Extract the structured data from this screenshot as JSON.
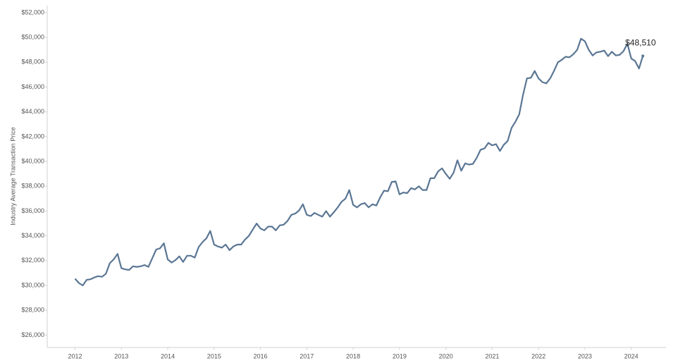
{
  "chart_data": {
    "type": "line",
    "y_label": "Industry Average Transaction Price",
    "last_value_label": "$48,510",
    "x": [
      2012,
      2012.083,
      2012.167,
      2012.25,
      2012.333,
      2012.417,
      2012.5,
      2012.583,
      2012.667,
      2012.75,
      2012.833,
      2012.917,
      2013,
      2013.083,
      2013.167,
      2013.25,
      2013.333,
      2013.417,
      2013.5,
      2013.583,
      2013.667,
      2013.75,
      2013.833,
      2013.917,
      2014,
      2014.083,
      2014.167,
      2014.25,
      2014.333,
      2014.417,
      2014.5,
      2014.583,
      2014.667,
      2014.75,
      2014.833,
      2014.917,
      2015,
      2015.083,
      2015.167,
      2015.25,
      2015.333,
      2015.417,
      2015.5,
      2015.583,
      2015.667,
      2015.75,
      2015.833,
      2015.917,
      2016,
      2016.083,
      2016.167,
      2016.25,
      2016.333,
      2016.417,
      2016.5,
      2016.583,
      2016.667,
      2016.75,
      2016.833,
      2016.917,
      2017,
      2017.083,
      2017.167,
      2017.25,
      2017.333,
      2017.417,
      2017.5,
      2017.583,
      2017.667,
      2017.75,
      2017.833,
      2017.917,
      2018,
      2018.083,
      2018.167,
      2018.25,
      2018.333,
      2018.417,
      2018.5,
      2018.583,
      2018.667,
      2018.75,
      2018.833,
      2018.917,
      2019,
      2019.083,
      2019.167,
      2019.25,
      2019.333,
      2019.417,
      2019.5,
      2019.583,
      2019.667,
      2019.75,
      2019.833,
      2019.917,
      2020,
      2020.083,
      2020.167,
      2020.25,
      2020.333,
      2020.417,
      2020.5,
      2020.583,
      2020.667,
      2020.75,
      2020.833,
      2020.917,
      2021,
      2021.083,
      2021.167,
      2021.25,
      2021.333,
      2021.417,
      2021.5,
      2021.583,
      2021.667,
      2021.75,
      2021.833,
      2021.917,
      2022,
      2022.083,
      2022.167,
      2022.25,
      2022.333,
      2022.417,
      2022.5,
      2022.583,
      2022.667,
      2022.75,
      2022.833,
      2022.917,
      2023,
      2023.083,
      2023.167,
      2023.25,
      2023.333,
      2023.417,
      2023.5,
      2023.583,
      2023.667,
      2023.75,
      2023.833,
      2023.917,
      2024,
      2024.083,
      2024.167,
      2024.25
    ],
    "values": [
      30550,
      30200,
      30000,
      30450,
      30500,
      30650,
      30750,
      30700,
      30950,
      31800,
      32100,
      32550,
      31400,
      31300,
      31250,
      31550,
      31500,
      31550,
      31650,
      31500,
      32200,
      32900,
      33000,
      33400,
      32100,
      31850,
      32050,
      32350,
      31900,
      32400,
      32400,
      32250,
      33100,
      33500,
      33800,
      34400,
      33300,
      33150,
      33050,
      33300,
      32850,
      33150,
      33300,
      33300,
      33700,
      34000,
      34500,
      35000,
      34600,
      34450,
      34750,
      34750,
      34450,
      34850,
      34900,
      35200,
      35700,
      35800,
      36050,
      36550,
      35700,
      35600,
      35850,
      35700,
      35550,
      36000,
      35550,
      35900,
      36300,
      36750,
      37000,
      37700,
      36500,
      36300,
      36550,
      36650,
      36300,
      36550,
      36450,
      37100,
      37650,
      37600,
      38350,
      38400,
      37350,
      37500,
      37450,
      37850,
      37750,
      38000,
      37700,
      37700,
      38650,
      38650,
      39200,
      39450,
      39000,
      38600,
      39100,
      40100,
      39250,
      39850,
      39750,
      39800,
      40300,
      40950,
      41050,
      41500,
      41300,
      41400,
      40850,
      41350,
      41650,
      42700,
      43200,
      43800,
      45400,
      46700,
      46750,
      47300,
      46700,
      46400,
      46300,
      46700,
      47300,
      48000,
      48200,
      48450,
      48400,
      48650,
      49000,
      49900,
      49700,
      49000,
      48550,
      48800,
      48850,
      48950,
      48500,
      48850,
      48550,
      48600,
      48900,
      49500,
      48300,
      48100,
      47500,
      48510
    ],
    "color": "#5a7694",
    "xlim": [
      2011.4,
      2024.75
    ],
    "xticks": [
      2012,
      2013,
      2014,
      2015,
      2016,
      2017,
      2018,
      2019,
      2020,
      2021,
      2022,
      2023,
      2024
    ],
    "ylim": [
      25000,
      52000
    ],
    "yticks": [
      {
        "value": 26000,
        "label": "$26,000"
      },
      {
        "value": 28000,
        "label": "$28,000"
      },
      {
        "value": 30000,
        "label": "$30,000"
      },
      {
        "value": 32000,
        "label": "$32,000"
      },
      {
        "value": 34000,
        "label": "$34,000"
      },
      {
        "value": 36000,
        "label": "$36,000"
      },
      {
        "value": 38000,
        "label": "$38,000"
      },
      {
        "value": 40000,
        "label": "$40,000"
      },
      {
        "value": 42000,
        "label": "$42,000"
      },
      {
        "value": 44000,
        "label": "$44,000"
      },
      {
        "value": 46000,
        "label": "$46,000"
      },
      {
        "value": 48000,
        "label": "$48,000"
      },
      {
        "value": 50000,
        "label": "$50,000"
      },
      {
        "value": 52000,
        "label": "$52,000"
      }
    ]
  }
}
